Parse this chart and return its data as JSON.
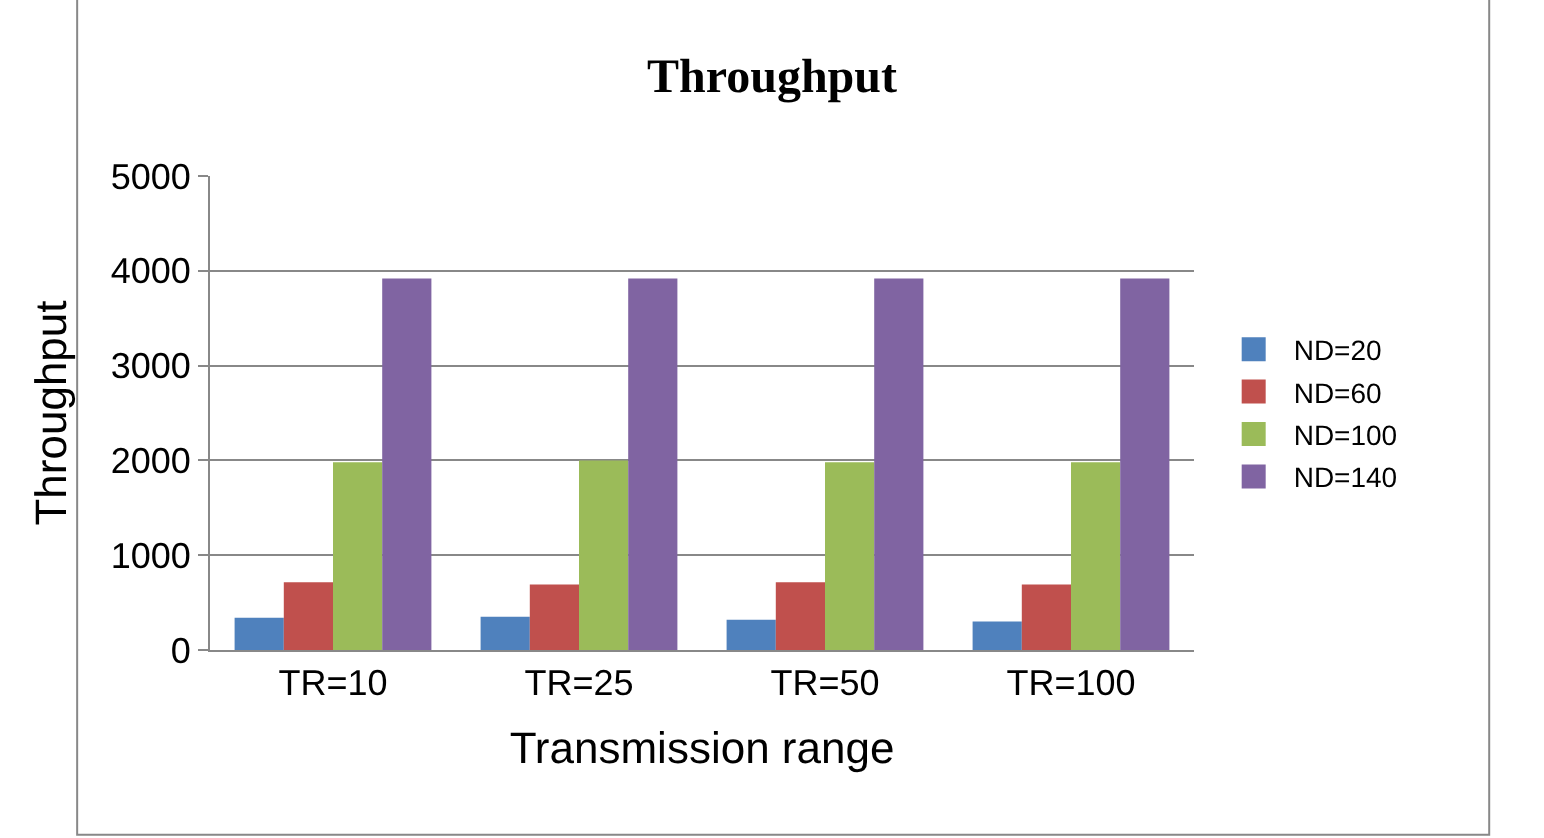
{
  "chart_data": {
    "type": "bar",
    "title": "Throughput",
    "xlabel": "Transmission range",
    "ylabel": "Throughput",
    "categories": [
      "TR=10",
      "TR=25",
      "TR=50",
      "TR=100"
    ],
    "series": [
      {
        "name": "ND=20",
        "color": "#4f81bd",
        "values": [
          340,
          350,
          320,
          300
        ]
      },
      {
        "name": "ND=60",
        "color": "#c0504d",
        "values": [
          715,
          690,
          715,
          690
        ]
      },
      {
        "name": "ND=100",
        "color": "#9bbb59",
        "values": [
          1980,
          2000,
          1980,
          1980
        ]
      },
      {
        "name": "ND=140",
        "color": "#8064a2",
        "values": [
          3920,
          3920,
          3920,
          3920
        ]
      }
    ],
    "ylim": [
      0,
      5000
    ],
    "yticks": [
      0,
      1000,
      2000,
      3000,
      4000,
      5000
    ],
    "grid": "y",
    "legend": "right"
  }
}
